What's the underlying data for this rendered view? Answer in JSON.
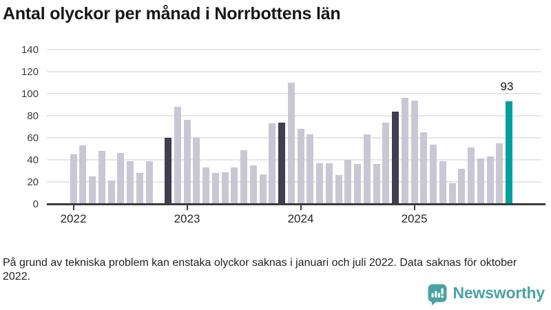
{
  "title": "Antal olyckor per månad i Norrbottens län",
  "footnote": "På grund av tekniska problem kan enstaka olyckor saknas i januari och juli 2022. Data saknas för oktober 2022.",
  "branding": {
    "wordmark": "Newsworthy",
    "icon": "newsworthy-speech-bubble-bar-chart-icon"
  },
  "colors": {
    "bar_default": "#c9c7d3",
    "bar_highlight": "#413e50",
    "bar_latest": "#00a09e",
    "grid": "#e6e5e8",
    "axis": "#3b3b3d",
    "brand": "#4aa3a2"
  },
  "chart_data": {
    "type": "bar",
    "title": "Antal olyckor per månad i Norrbottens län",
    "xlabel": "",
    "ylabel": "",
    "ylim": [
      0,
      140
    ],
    "yticks": [
      0,
      20,
      40,
      60,
      80,
      100,
      120,
      140
    ],
    "grid": "horizontal",
    "legend": "none",
    "x_tick_labels": [
      "2022",
      "2023",
      "2024",
      "2025"
    ],
    "value_label": {
      "month": "2025-11",
      "text": "93"
    },
    "note": "October 2022 has no bar (data missing); November bars of each year are highlighted dark; latest month (Nov 2025) is teal",
    "months": [
      {
        "month": "2022-01",
        "value": 45,
        "style": "default"
      },
      {
        "month": "2022-02",
        "value": 53,
        "style": "default"
      },
      {
        "month": "2022-03",
        "value": 25,
        "style": "default"
      },
      {
        "month": "2022-04",
        "value": 48,
        "style": "default"
      },
      {
        "month": "2022-05",
        "value": 21,
        "style": "default"
      },
      {
        "month": "2022-06",
        "value": 46,
        "style": "default"
      },
      {
        "month": "2022-07",
        "value": 39,
        "style": "default"
      },
      {
        "month": "2022-08",
        "value": 28,
        "style": "default"
      },
      {
        "month": "2022-09",
        "value": 39,
        "style": "default"
      },
      {
        "month": "2022-10",
        "value": null,
        "style": "missing"
      },
      {
        "month": "2022-11",
        "value": 60,
        "style": "highlight"
      },
      {
        "month": "2022-12",
        "value": 88,
        "style": "default"
      },
      {
        "month": "2023-01",
        "value": 76,
        "style": "default"
      },
      {
        "month": "2023-02",
        "value": 60,
        "style": "default"
      },
      {
        "month": "2023-03",
        "value": 33,
        "style": "default"
      },
      {
        "month": "2023-04",
        "value": 28,
        "style": "default"
      },
      {
        "month": "2023-05",
        "value": 29,
        "style": "default"
      },
      {
        "month": "2023-06",
        "value": 33,
        "style": "default"
      },
      {
        "month": "2023-07",
        "value": 49,
        "style": "default"
      },
      {
        "month": "2023-08",
        "value": 35,
        "style": "default"
      },
      {
        "month": "2023-09",
        "value": 27,
        "style": "default"
      },
      {
        "month": "2023-10",
        "value": 73,
        "style": "default"
      },
      {
        "month": "2023-11",
        "value": 74,
        "style": "highlight"
      },
      {
        "month": "2023-12",
        "value": 110,
        "style": "default"
      },
      {
        "month": "2024-01",
        "value": 68,
        "style": "default"
      },
      {
        "month": "2024-02",
        "value": 63,
        "style": "default"
      },
      {
        "month": "2024-03",
        "value": 37,
        "style": "default"
      },
      {
        "month": "2024-04",
        "value": 37,
        "style": "default"
      },
      {
        "month": "2024-05",
        "value": 26,
        "style": "default"
      },
      {
        "month": "2024-06",
        "value": 40,
        "style": "default"
      },
      {
        "month": "2024-07",
        "value": 36,
        "style": "default"
      },
      {
        "month": "2024-08",
        "value": 63,
        "style": "default"
      },
      {
        "month": "2024-09",
        "value": 36,
        "style": "default"
      },
      {
        "month": "2024-10",
        "value": 74,
        "style": "default"
      },
      {
        "month": "2024-11",
        "value": 84,
        "style": "highlight"
      },
      {
        "month": "2024-12",
        "value": 96,
        "style": "default"
      },
      {
        "month": "2025-01",
        "value": 94,
        "style": "default"
      },
      {
        "month": "2025-02",
        "value": 65,
        "style": "default"
      },
      {
        "month": "2025-03",
        "value": 54,
        "style": "default"
      },
      {
        "month": "2025-04",
        "value": 39,
        "style": "default"
      },
      {
        "month": "2025-05",
        "value": 19,
        "style": "default"
      },
      {
        "month": "2025-06",
        "value": 32,
        "style": "default"
      },
      {
        "month": "2025-07",
        "value": 51,
        "style": "default"
      },
      {
        "month": "2025-08",
        "value": 41,
        "style": "default"
      },
      {
        "month": "2025-09",
        "value": 43,
        "style": "default"
      },
      {
        "month": "2025-10",
        "value": 55,
        "style": "default"
      },
      {
        "month": "2025-11",
        "value": 93,
        "style": "latest"
      }
    ]
  }
}
